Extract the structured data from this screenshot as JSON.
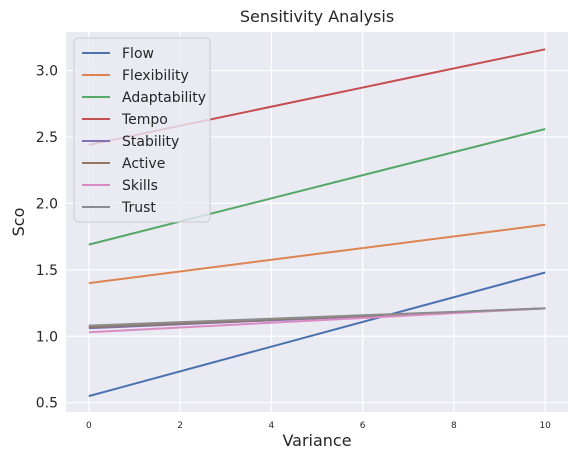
{
  "chart_data": {
    "type": "line",
    "title": "Sensitivity Analysis",
    "xlabel": "Variance",
    "ylabel": "Sco",
    "xlim": [
      -0.5,
      10.5
    ],
    "ylim": [
      0.43,
      3.29
    ],
    "xticks": [
      0,
      2,
      4,
      6,
      8,
      10
    ],
    "xtick_labels": [
      "0",
      "2",
      "4",
      "6",
      "8",
      "10"
    ],
    "yticks": [
      0.5,
      1.0,
      1.5,
      2.0,
      2.5,
      3.0
    ],
    "ytick_labels": [
      "0.5",
      "1.0",
      "1.5",
      "2.0",
      "2.5",
      "3.0"
    ],
    "grid": true,
    "legend_position": "top-left",
    "x": [
      0,
      10
    ],
    "series": [
      {
        "name": "Flow",
        "values": [
          0.55,
          1.48
        ],
        "color": "#4c72b0"
      },
      {
        "name": "Flexibility",
        "values": [
          1.4,
          1.84
        ],
        "color": "#dd8452"
      },
      {
        "name": "Adaptability",
        "values": [
          1.69,
          2.56
        ],
        "color": "#55a868"
      },
      {
        "name": "Tempo",
        "values": [
          2.44,
          3.16
        ],
        "color": "#c44e52"
      },
      {
        "name": "Stability",
        "values": [
          1.06,
          1.21
        ],
        "color": "#8172b3"
      },
      {
        "name": "Active",
        "values": [
          1.07,
          1.21
        ],
        "color": "#937860"
      },
      {
        "name": "Skills",
        "values": [
          1.03,
          1.21
        ],
        "color": "#da8bc3"
      },
      {
        "name": "Trust",
        "values": [
          1.08,
          1.21
        ],
        "color": "#8c8c8c"
      }
    ]
  }
}
